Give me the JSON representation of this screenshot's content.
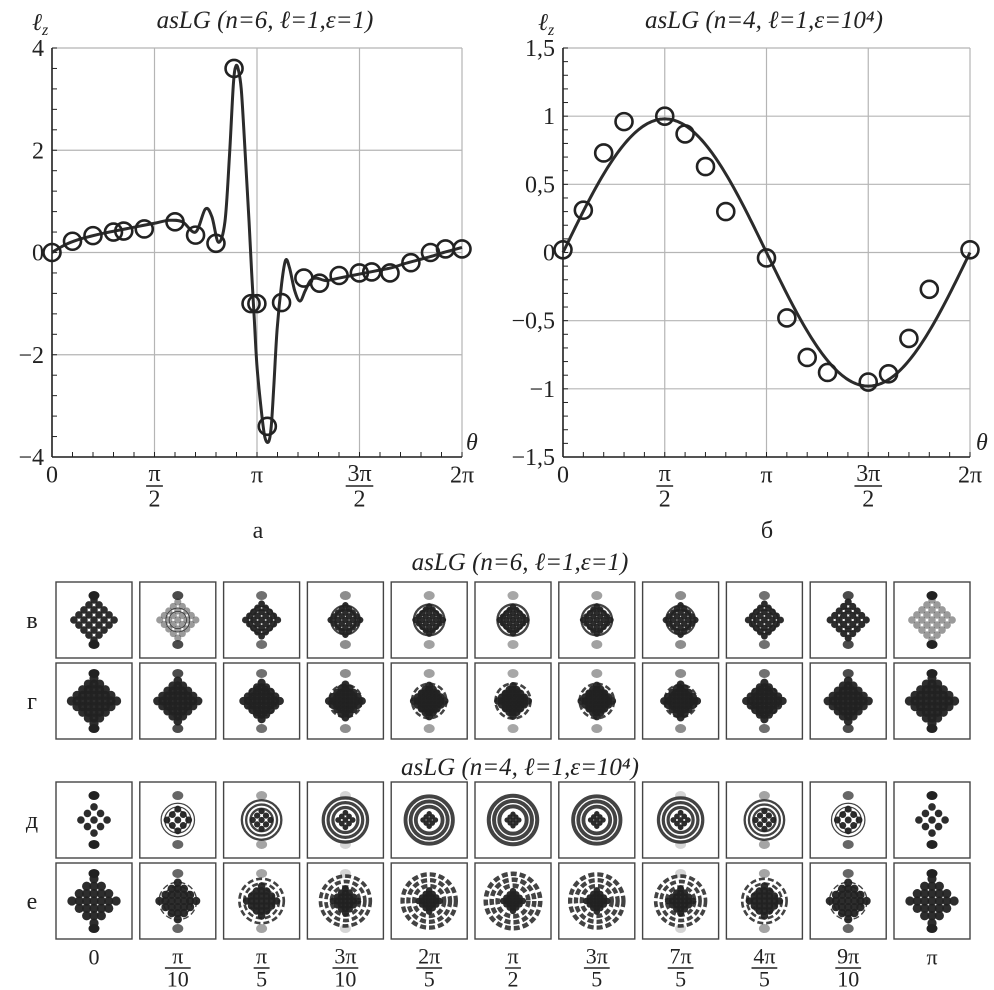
{
  "chart_data": [
    {
      "type": "line",
      "title": "asLG (n=6, ℓ=1,ε=1)",
      "ylabel": "ℓz",
      "xlabel": "θ",
      "xlim": [
        0,
        6.2832
      ],
      "ylim": [
        -4,
        4
      ],
      "grid": true,
      "x_ticks": [
        {
          "value": 0,
          "num": "0",
          "den": ""
        },
        {
          "value": 1.5708,
          "num": "π",
          "den": "2"
        },
        {
          "value": 3.1416,
          "num": "π",
          "den": ""
        },
        {
          "value": 4.7124,
          "num": "3π",
          "den": "2"
        },
        {
          "value": 6.2832,
          "num": "2π",
          "den": ""
        }
      ],
      "y_ticks": [
        {
          "value": 4,
          "label": "4"
        },
        {
          "value": 2,
          "label": "2"
        },
        {
          "value": 0,
          "label": "0"
        },
        {
          "value": -2,
          "label": "−2"
        },
        {
          "value": -4,
          "label": "−4"
        }
      ],
      "y_minor_step": 0.4,
      "x_minor_step": 0.31416,
      "panel_label": "а",
      "series": [
        {
          "style": "line",
          "x": [
            0,
            0.2,
            0.4,
            0.6,
            0.8,
            1.0,
            1.2,
            1.4,
            1.6,
            1.8,
            2.0,
            2.2,
            2.35,
            2.45,
            2.55,
            2.65,
            2.72,
            2.78,
            2.82,
            2.86,
            2.9,
            2.94,
            2.98,
            3.02,
            3.06,
            3.1,
            3.14,
            3.2,
            3.26,
            3.32,
            3.36,
            3.4,
            3.45,
            3.52,
            3.58,
            3.64,
            3.72,
            3.8,
            3.88,
            3.96,
            4.05,
            4.2,
            4.4,
            4.6,
            4.8,
            5.0,
            5.2,
            5.4,
            5.6,
            5.8,
            6.0,
            6.2832
          ],
          "y": [
            0,
            0.15,
            0.25,
            0.32,
            0.38,
            0.43,
            0.48,
            0.53,
            0.58,
            0.63,
            0.6,
            0.4,
            0.85,
            0.7,
            0.2,
            0.6,
            1.9,
            3.3,
            3.65,
            3.55,
            3.2,
            2.4,
            1.5,
            0.6,
            -0.4,
            -1.3,
            -2.2,
            -3.0,
            -3.6,
            -3.7,
            -3.4,
            -2.6,
            -1.5,
            -0.6,
            -0.15,
            -0.3,
            -0.75,
            -0.95,
            -0.75,
            -0.55,
            -0.5,
            -0.55,
            -0.5,
            -0.45,
            -0.4,
            -0.35,
            -0.3,
            -0.22,
            -0.15,
            -0.08,
            0,
            0.1
          ]
        },
        {
          "style": "markers",
          "x": [
            0,
            0.314,
            0.628,
            0.942,
            1.1,
            1.414,
            1.885,
            2.2,
            2.513,
            2.79,
            3.05,
            3.14,
            3.3,
            3.518,
            3.86,
            4.1,
            4.4,
            4.71,
            4.9,
            5.18,
            5.5,
            5.8,
            6.03,
            6.2832
          ],
          "y": [
            0,
            0.22,
            0.33,
            0.4,
            0.42,
            0.46,
            0.6,
            0.34,
            0.18,
            3.6,
            -1.0,
            -1.0,
            -3.4,
            -0.98,
            -0.5,
            -0.6,
            -0.45,
            -0.4,
            -0.38,
            -0.4,
            -0.2,
            0,
            0.07,
            0.07
          ]
        }
      ]
    },
    {
      "type": "line",
      "title": "asLG (n=4, ℓ=1,ε=10⁴)",
      "ylabel": "ℓz",
      "xlabel": "θ",
      "xlim": [
        0,
        6.2832
      ],
      "ylim": [
        -1.5,
        1.5
      ],
      "grid": true,
      "x_ticks": [
        {
          "value": 0,
          "num": "0",
          "den": ""
        },
        {
          "value": 1.5708,
          "num": "π",
          "den": "2"
        },
        {
          "value": 3.1416,
          "num": "π",
          "den": ""
        },
        {
          "value": 4.7124,
          "num": "3π",
          "den": "2"
        },
        {
          "value": 6.2832,
          "num": "2π",
          "den": ""
        }
      ],
      "y_ticks": [
        {
          "value": 1.5,
          "label": "1,5"
        },
        {
          "value": 1,
          "label": "1"
        },
        {
          "value": 0.5,
          "label": "0,5"
        },
        {
          "value": 0,
          "label": "0"
        },
        {
          "value": -0.5,
          "label": "−0,5"
        },
        {
          "value": -1,
          "label": "−1"
        },
        {
          "value": -1.5,
          "label": "−1,5"
        }
      ],
      "y_minor_step": 0.1,
      "x_minor_step": 0.31416,
      "panel_label": "б",
      "series": [
        {
          "style": "line",
          "function": "sin",
          "amplitude": 0.98
        },
        {
          "style": "markers",
          "x": [
            0,
            0.314,
            0.628,
            0.942,
            1.5708,
            1.885,
            2.2,
            2.513,
            3.1416,
            3.456,
            3.77,
            4.084,
            4.712,
            5.026,
            5.34,
            5.655,
            6.2832
          ],
          "y": [
            0.02,
            0.31,
            0.73,
            0.96,
            1.0,
            0.87,
            0.63,
            0.3,
            -0.04,
            -0.48,
            -0.77,
            -0.88,
            -0.95,
            -0.89,
            -0.63,
            -0.27,
            0.02
          ]
        }
      ]
    }
  ],
  "figure": {
    "title_row1": "asLG (n=6, ℓ=1,ε=1)",
    "title_row2": "asLG (n=4, ℓ=1,ε=10⁴)",
    "row_labels": [
      "в",
      "г",
      "д",
      "е"
    ],
    "columns": [
      {
        "num": "0",
        "den": ""
      },
      {
        "num": "π",
        "den": "10"
      },
      {
        "num": "π",
        "den": "5"
      },
      {
        "num": "3π",
        "den": "10"
      },
      {
        "num": "2π",
        "den": "5"
      },
      {
        "num": "π",
        "den": "2"
      },
      {
        "num": "3π",
        "den": "5"
      },
      {
        "num": "7π",
        "den": "5"
      },
      {
        "num": "4π",
        "den": "5"
      },
      {
        "num": "9π",
        "den": "10"
      },
      {
        "num": "π",
        "den": ""
      }
    ]
  }
}
